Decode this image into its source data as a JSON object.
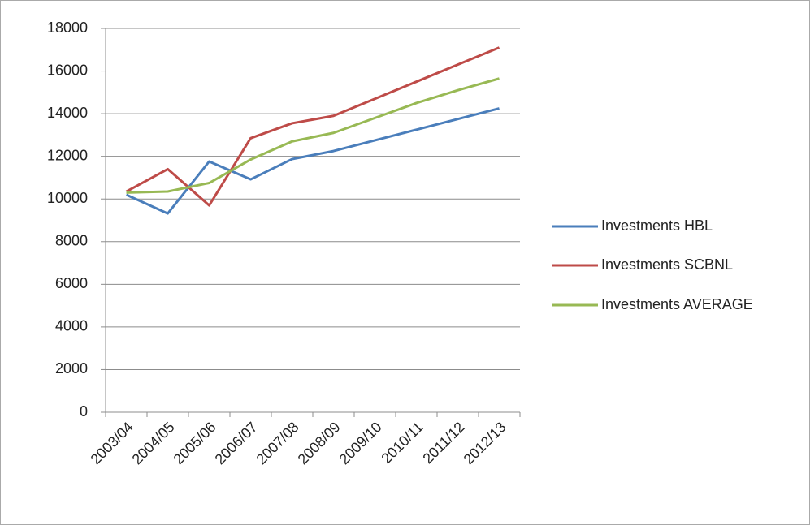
{
  "chart_data": {
    "type": "line",
    "categories": [
      "2003/04",
      "2004/05",
      "2005/06",
      "2006/07",
      "2007/08",
      "2008/09",
      "2009/10",
      "2010/11",
      "2011/12",
      "2012/13"
    ],
    "series": [
      {
        "name": "Investments HBL",
        "color": "#4a7ebb",
        "values": [
          10200,
          9320,
          11760,
          10920,
          11870,
          12250,
          12750,
          13250,
          13750,
          14250
        ]
      },
      {
        "name": "Investments SCBNL",
        "color": "#be4b48",
        "values": [
          10350,
          11400,
          9700,
          12850,
          13550,
          13900,
          14700,
          15500,
          16300,
          17100
        ]
      },
      {
        "name": "Investments AVERAGE",
        "color": "#98b954",
        "values": [
          10300,
          10350,
          10750,
          11850,
          12700,
          13100,
          13800,
          14500,
          15100,
          15650
        ]
      }
    ],
    "ylim": [
      0,
      18000
    ],
    "yticks": [
      0,
      2000,
      4000,
      6000,
      8000,
      10000,
      12000,
      14000,
      16000,
      18000
    ],
    "grid": true,
    "legend": "right"
  }
}
